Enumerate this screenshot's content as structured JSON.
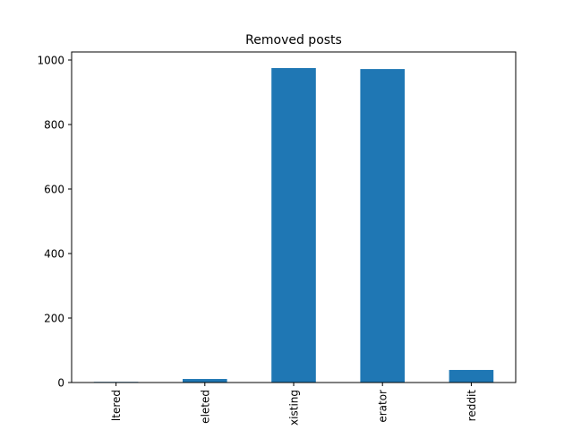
{
  "chart_data": {
    "type": "bar",
    "title": "Removed posts",
    "xlabel": "",
    "ylabel": "",
    "categories": [
      "filtered",
      "deleted",
      "existing",
      "moderator",
      "reddit"
    ],
    "category_labels_visible": [
      "ltered",
      "eleted",
      "xisting",
      "erator",
      "reddit"
    ],
    "values": [
      2,
      11,
      975,
      972,
      39
    ],
    "ylim": [
      0,
      1025
    ],
    "yticks": [
      0,
      200,
      400,
      600,
      800,
      1000
    ],
    "grid": false,
    "legend": "none",
    "bar_color": "#1f77b4"
  }
}
